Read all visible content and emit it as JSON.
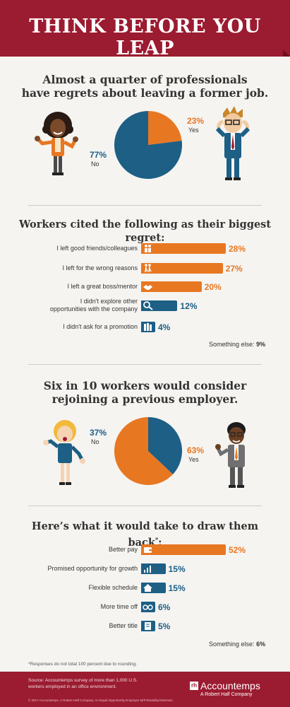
{
  "title": "THINK BEFORE YOU LEAP",
  "section1": {
    "heading_line1": "Almost a quarter of professionals",
    "heading_line2": "have regrets about leaving a former job.",
    "yes_pct": "23%",
    "yes_label": "Yes",
    "no_pct": "77%",
    "no_label": "No"
  },
  "section2": {
    "heading": "Workers cited the following as their biggest regret:",
    "something_else_label": "Something else:",
    "something_else_value": "9%"
  },
  "section3": {
    "heading_line1": "Six in 10 workers would consider",
    "heading_line2": "rejoining a previous employer.",
    "no_pct": "37%",
    "no_label": "No",
    "yes_pct": "63%",
    "yes_label": "Yes"
  },
  "section4": {
    "heading": "Here’s what it would take to draw them back",
    "heading_mark": "*",
    "heading_end": ":",
    "something_else_label": "Something else:",
    "something_else_value": "6%"
  },
  "footnote": "*Responses do not total 100 percent due to rounding.",
  "footer": {
    "source": "Source: Accountemps survey of more than 1,000 U.S. workers employed in an office environment.",
    "copyright": "© 2017 Accountemps. A Robert Half Company. An Equal Opportunity Employer M/F/Disability/Veterans.",
    "logo_mark": "rh",
    "brand": "Accountemps",
    "brand_sub": "A Robert Half Company"
  },
  "colors": {
    "orange": "#e87722",
    "blue": "#1d5f85",
    "red": "#9b1b30"
  },
  "chart_data": [
    {
      "type": "pie",
      "categories": [
        "Yes",
        "No"
      ],
      "values": [
        23,
        77
      ],
      "colors": [
        "#e87722",
        "#1d5f85"
      ]
    },
    {
      "type": "bar",
      "orientation": "horizontal",
      "categories": [
        "I left good friends/colleagues",
        "I left for the wrong reasons",
        "I left a great boss/mentor",
        "I didn't explore other opportunities with the company",
        "I didn't ask for a promotion"
      ],
      "label_lines": [
        [
          "I left good friends/colleagues"
        ],
        [
          "I left for the wrong reasons"
        ],
        [
          "I left a great boss/mentor"
        ],
        [
          "I didn't explore other",
          "opportunities with the company"
        ],
        [
          "I didn't ask for a promotion"
        ]
      ],
      "values": [
        28,
        27,
        20,
        12,
        4
      ],
      "value_labels": [
        "28%",
        "27%",
        "20%",
        "12%",
        "4%"
      ],
      "colors": [
        "#e87722",
        "#e87722",
        "#e87722",
        "#1d5f85",
        "#1d5f85"
      ],
      "icons": [
        "people-icon",
        "walking-icon",
        "handshake-icon",
        "magnifier-icon",
        "books-icon"
      ]
    },
    {
      "type": "pie",
      "categories": [
        "No",
        "Yes"
      ],
      "values": [
        37,
        63
      ],
      "colors": [
        "#1d5f85",
        "#e87722"
      ]
    },
    {
      "type": "bar",
      "orientation": "horizontal",
      "categories": [
        "Better pay",
        "Promised opportunity for growth",
        "Flexible schedule",
        "More time off",
        "Better title"
      ],
      "label_lines": [
        [
          "Better pay"
        ],
        [
          "Promised opportunity for growth"
        ],
        [
          "Flexible schedule"
        ],
        [
          "More time off"
        ],
        [
          "Better title"
        ]
      ],
      "values": [
        52,
        15,
        15,
        6,
        5
      ],
      "value_labels": [
        "52%",
        "15%",
        "15%",
        "6%",
        "5%"
      ],
      "colors": [
        "#e87722",
        "#1d5f85",
        "#1d5f85",
        "#1d5f85",
        "#1d5f85"
      ],
      "icons": [
        "wallet-icon",
        "growth-chart-icon",
        "house-icon",
        "glasses-icon",
        "certificate-icon"
      ]
    }
  ]
}
